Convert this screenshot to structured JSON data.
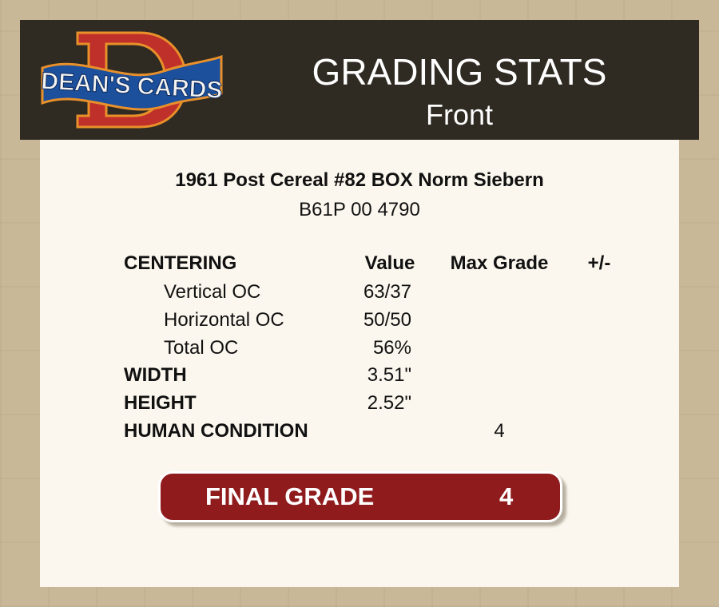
{
  "header": {
    "logo_text": "DEAN'S CARDS",
    "title": "GRADING STATS",
    "subtitle": "Front"
  },
  "card": {
    "name": "1961 Post Cereal #82 BOX Norm Siebern",
    "cert": "B61P 00 4790"
  },
  "table": {
    "headers": {
      "section": "CENTERING",
      "value": "Value",
      "max": "Max Grade",
      "pm": "+/-"
    },
    "rows": [
      {
        "label": "Vertical OC",
        "value": "63/37"
      },
      {
        "label": "Horizontal OC",
        "value": "50/50"
      },
      {
        "label": "Total OC",
        "value": "56%"
      },
      {
        "label": "WIDTH",
        "value": "3.51\""
      },
      {
        "label": "HEIGHT",
        "value": "2.52\""
      },
      {
        "label": "HUMAN CONDITION",
        "max": "4"
      }
    ]
  },
  "final": {
    "label": "FINAL GRADE",
    "value": "4"
  },
  "colors": {
    "header_bg": "#2f2a22",
    "panel_bg": "#fbf7ee",
    "final_bg": "#8f1b1d",
    "logo_red": "#c0302a",
    "logo_blue": "#1c4f9c"
  }
}
